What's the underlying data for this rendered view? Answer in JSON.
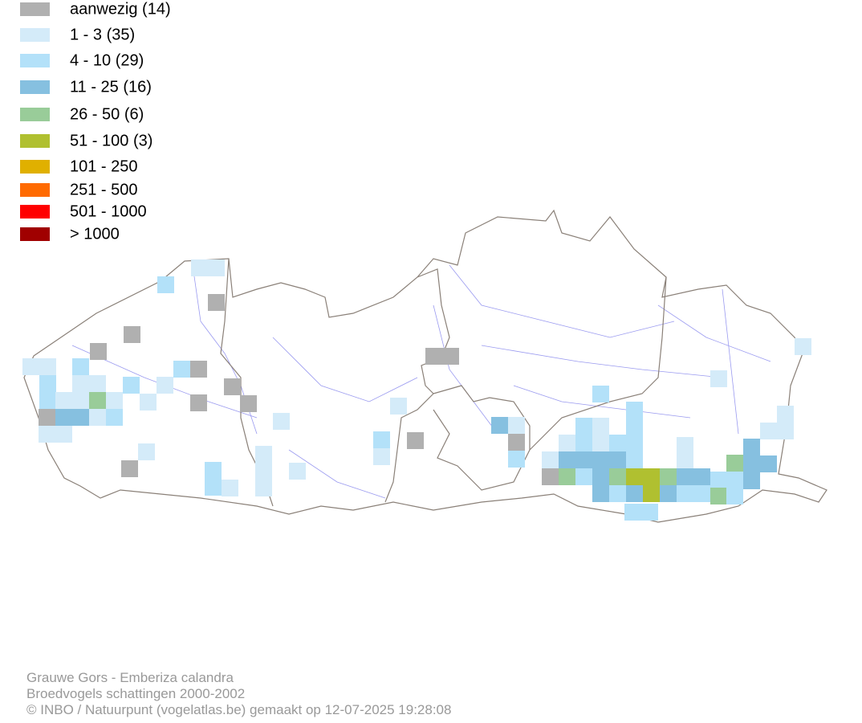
{
  "legend": [
    {
      "label": "aanwezig (14)",
      "color": "#b0b0b0"
    },
    {
      "label": "1 - 3 (35)",
      "color": "#d4ebf9"
    },
    {
      "label": "4 - 10 (29)",
      "color": "#b3e1f9"
    },
    {
      "label": "11 - 25 (16)",
      "color": "#86c0e0"
    },
    {
      "label": "26 - 50 (6)",
      "color": "#99cc99"
    },
    {
      "label": "51 - 100 (3)",
      "color": "#b0c030"
    },
    {
      "label": "101 - 250",
      "color": "#e0b000"
    },
    {
      "label": "251 - 500",
      "color": "#ff6a00"
    },
    {
      "label": "501 - 1000",
      "color": "#ff0000"
    },
    {
      "label": "> 1000",
      "color": "#a00000"
    }
  ],
  "footer": [
    "Grauwe Gors - Emberiza calandra",
    "Broedvogels schattingen 2000-2002",
    "© INBO / Natuurpunt (vogelatlas.be) gemaakt op 12-07-2025 19:28:08"
  ]
}
